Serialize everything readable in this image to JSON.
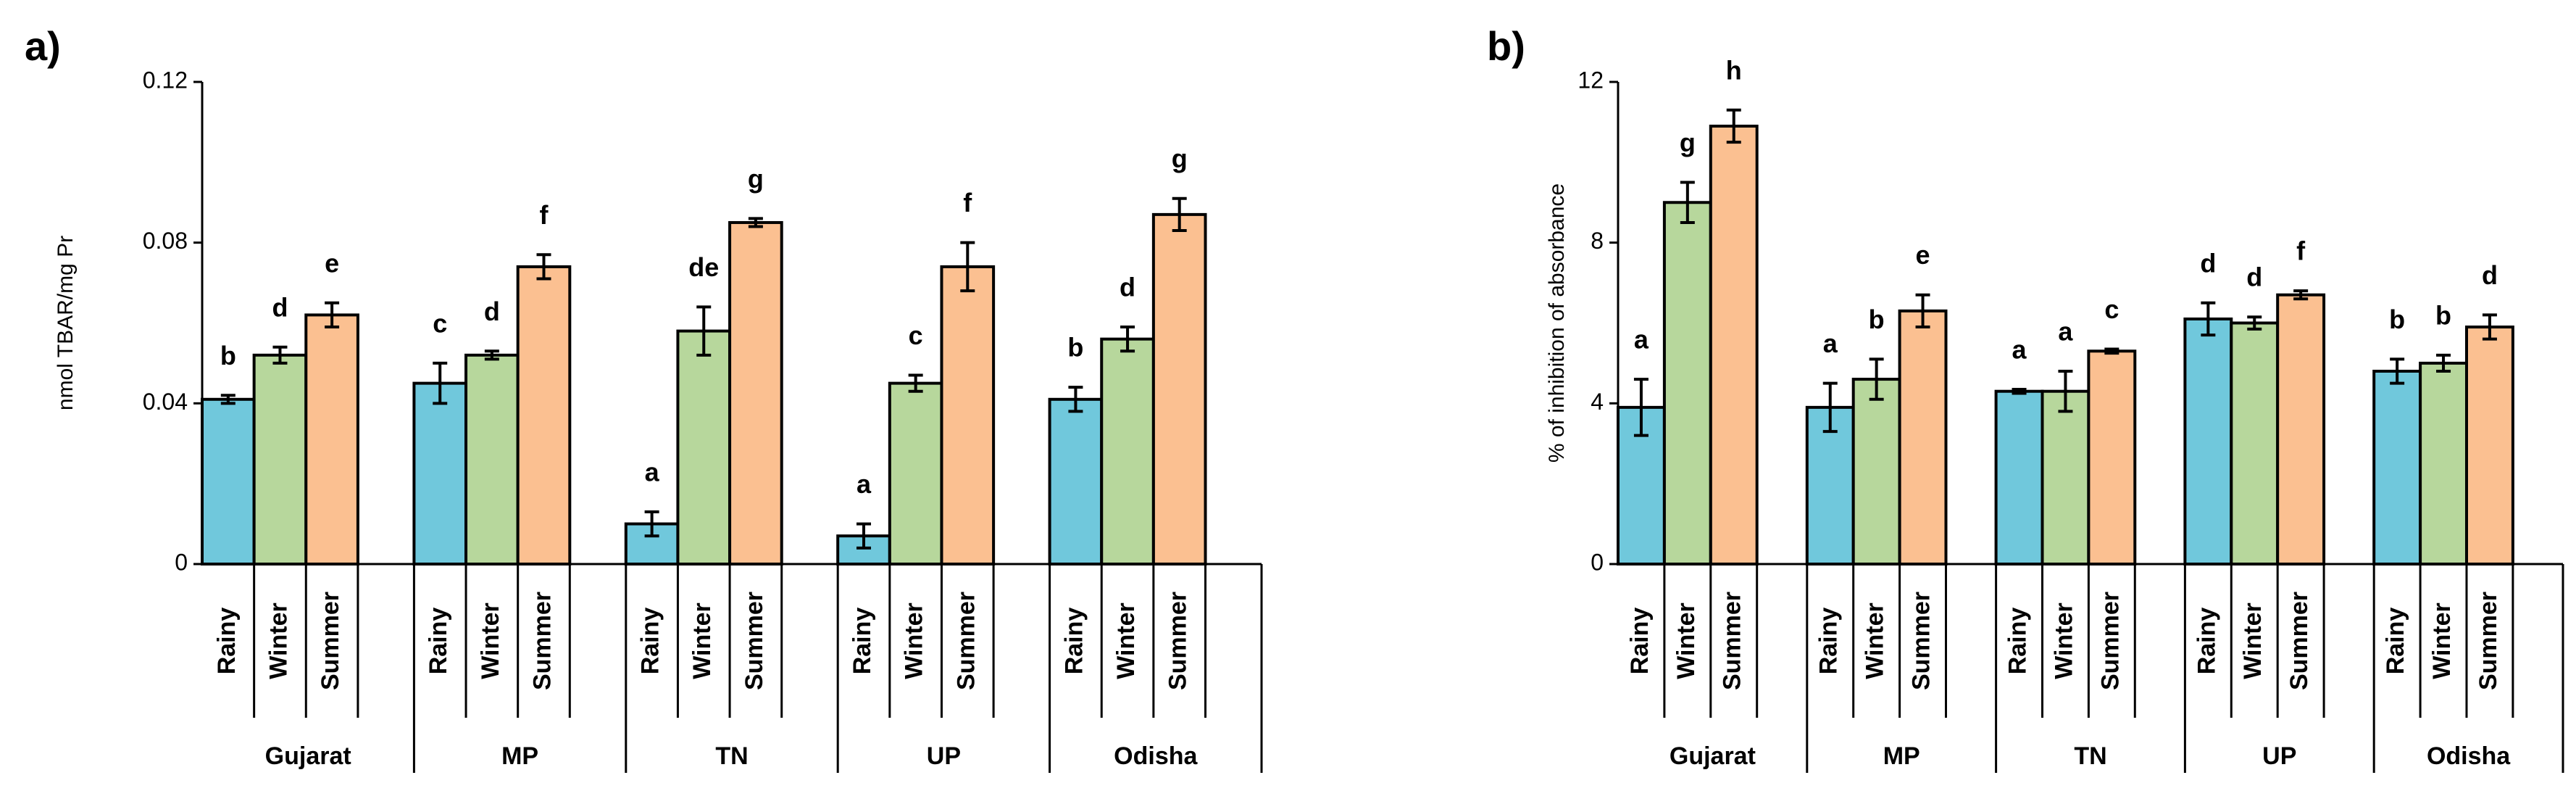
{
  "chart_data": [
    {
      "type": "bar",
      "panel": "a)",
      "ylabel": "nmol TBAR/mg Pr",
      "groups": [
        "Gujarat",
        "MP",
        "TN",
        "UP",
        "Odisha"
      ],
      "ylim": [
        0,
        0.12
      ],
      "yticks": [
        0,
        0.04,
        0.08,
        0.12
      ],
      "series": [
        {
          "name": "Rainy",
          "color": "#70c8dc",
          "values": [
            0.041,
            0.045,
            0.01,
            0.007,
            0.041
          ],
          "errors": [
            0.001,
            0.005,
            0.003,
            0.003,
            0.003
          ],
          "letters": [
            "b",
            "c",
            "a",
            "a",
            "b"
          ]
        },
        {
          "name": "Winter",
          "color": "#b7d79c",
          "values": [
            0.052,
            0.052,
            0.058,
            0.045,
            0.056
          ],
          "errors": [
            0.002,
            0.001,
            0.006,
            0.002,
            0.003
          ],
          "letters": [
            "d",
            "d",
            "de",
            "c",
            "d"
          ]
        },
        {
          "name": "Summer",
          "color": "#fbc091",
          "values": [
            0.062,
            0.074,
            0.085,
            0.074,
            0.087
          ],
          "errors": [
            0.003,
            0.003,
            0.001,
            0.006,
            0.004
          ],
          "letters": [
            "e",
            "f",
            "g",
            "f",
            "g"
          ]
        }
      ]
    },
    {
      "type": "bar",
      "panel": "b)",
      "ylabel": "% of inhibition of absorbance",
      "groups": [
        "Gujarat",
        "MP",
        "TN",
        "UP",
        "Odisha"
      ],
      "ylim": [
        0,
        12
      ],
      "yticks": [
        0,
        4,
        8,
        12
      ],
      "series": [
        {
          "name": "Rainy",
          "color": "#70c8dc",
          "values": [
            3.9,
            3.9,
            4.3,
            6.1,
            4.8
          ],
          "errors": [
            0.7,
            0.6,
            0.05,
            0.4,
            0.3
          ],
          "letters": [
            "a",
            "a",
            "a",
            "d",
            "b"
          ]
        },
        {
          "name": "Winter",
          "color": "#b7d79c",
          "values": [
            9.0,
            4.6,
            4.3,
            6.0,
            5.0
          ],
          "errors": [
            0.5,
            0.5,
            0.5,
            0.15,
            0.2
          ],
          "letters": [
            "g",
            "b",
            "a",
            "d",
            "b"
          ]
        },
        {
          "name": "Summer",
          "color": "#fbc091",
          "values": [
            10.9,
            6.3,
            5.3,
            6.7,
            5.9
          ],
          "errors": [
            0.4,
            0.4,
            0.05,
            0.1,
            0.3
          ],
          "letters": [
            "h",
            "e",
            "c",
            "f",
            "d"
          ]
        }
      ]
    }
  ]
}
